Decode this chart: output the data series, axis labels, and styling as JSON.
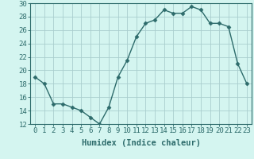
{
  "x": [
    0,
    1,
    2,
    3,
    4,
    5,
    6,
    7,
    8,
    9,
    10,
    11,
    12,
    13,
    14,
    15,
    16,
    17,
    18,
    19,
    20,
    21,
    22,
    23
  ],
  "y": [
    19,
    18,
    15,
    15,
    14.5,
    14,
    13,
    12,
    14.5,
    19,
    21.5,
    25,
    27,
    27.5,
    29,
    28.5,
    28.5,
    29.5,
    29,
    27,
    27,
    26.5,
    21,
    18
  ],
  "line_color": "#2d6b6b",
  "marker": "D",
  "marker_size": 2.5,
  "bg_color": "#d4f5f0",
  "grid_color": "#aacece",
  "xlabel": "Humidex (Indice chaleur)",
  "xlim": [
    -0.5,
    23.5
  ],
  "ylim": [
    12,
    30
  ],
  "yticks": [
    12,
    14,
    16,
    18,
    20,
    22,
    24,
    26,
    28,
    30
  ],
  "xticks": [
    0,
    1,
    2,
    3,
    4,
    5,
    6,
    7,
    8,
    9,
    10,
    11,
    12,
    13,
    14,
    15,
    16,
    17,
    18,
    19,
    20,
    21,
    22,
    23
  ],
  "xlabel_fontsize": 7.5,
  "tick_fontsize": 6.5
}
